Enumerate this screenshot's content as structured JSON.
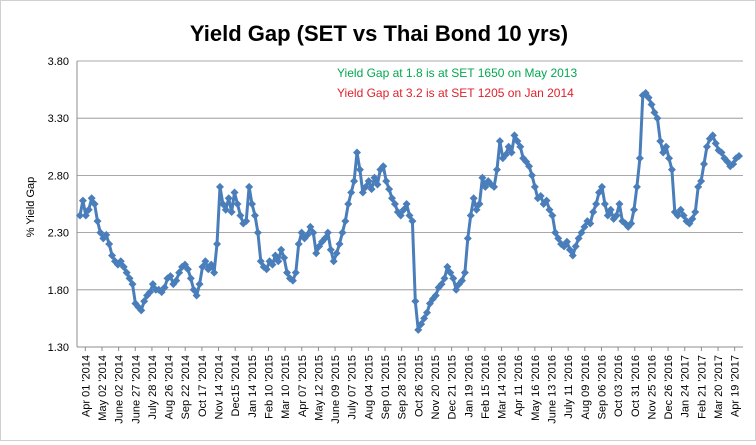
{
  "chart_data": {
    "type": "line",
    "title": "Yield Gap (SET vs Thai Bond 10 yrs)",
    "xlabel": "",
    "ylabel": "% Yield Gap",
    "ylim": [
      1.3,
      3.8
    ],
    "yticks": [
      "1.30",
      "1.80",
      "2.30",
      "2.80",
      "3.30",
      "3.80"
    ],
    "grid": true,
    "legend": "none",
    "line_color": "#4a7ebb",
    "annotations": [
      {
        "text": "Yield Gap at  1.8  is at SET  1650  on May  2013",
        "color": "#00a850"
      },
      {
        "text": "Yield Gap at  3.2  is at SET  1205  on Jan 2014",
        "color": "#e0202a"
      }
    ],
    "x_labels": [
      "Apr 01 '2014",
      "May 02 '2014",
      "June 02 '2014",
      "June 27 '2014",
      "July 28 '2014",
      "Aug 26 '2014",
      "Sep 22 '2014",
      "Oct 17 '2014",
      "Nov 14 '2014",
      "Dec15 '2014",
      "Jan 14 '2015",
      "Feb 10 '2015",
      "Mar 10 '2015",
      "Apr 07 '2015",
      "May 12 '2015",
      "June 09 '2015",
      "July 07 '2015",
      "Aug 04 '2015",
      "Sep 01 '2015",
      "Sep 28 '2015",
      "Oct 26 '2015",
      "Nov 20 '2015",
      "Dec 21 '2015",
      "Jan 19 '2016",
      "Feb 15 '2016",
      "Mar 14 '2016",
      "Apr 11 '2016",
      "May 16 '2016",
      "June 13 '2016",
      "July 11 '2016",
      "Aug 09 '2016",
      "Sep 06 '2016",
      "Oct 03 '2016",
      "Oct 31 '2016",
      "Nov 25 '2016",
      "Dec 26 '2016",
      "Jan 24 '2017",
      "Feb 21 '2017",
      "Mar 20 '2017",
      "Apr 19 '2017"
    ],
    "y_values": [
      2.45,
      2.58,
      2.45,
      2.5,
      2.6,
      2.55,
      2.4,
      2.3,
      2.25,
      2.28,
      2.2,
      2.1,
      2.05,
      2.02,
      2.05,
      2.0,
      1.95,
      1.9,
      1.85,
      1.68,
      1.65,
      1.62,
      1.7,
      1.75,
      1.78,
      1.85,
      1.8,
      1.8,
      1.78,
      1.82,
      1.9,
      1.92,
      1.85,
      1.88,
      1.95,
      2.0,
      2.02,
      1.98,
      1.9,
      1.8,
      1.75,
      1.85,
      2.0,
      2.05,
      1.98,
      2.02,
      1.95,
      2.2,
      2.7,
      2.55,
      2.5,
      2.6,
      2.48,
      2.65,
      2.55,
      2.45,
      2.38,
      2.4,
      2.7,
      2.55,
      2.45,
      2.3,
      2.05,
      2.0,
      1.98,
      2.05,
      2.02,
      2.1,
      2.05,
      2.15,
      2.08,
      1.95,
      1.9,
      1.88,
      1.95,
      2.2,
      2.3,
      2.25,
      2.28,
      2.35,
      2.3,
      2.12,
      2.18,
      2.22,
      2.25,
      2.3,
      2.15,
      2.05,
      2.12,
      2.2,
      2.3,
      2.4,
      2.55,
      2.65,
      2.75,
      3.0,
      2.85,
      2.65,
      2.7,
      2.75,
      2.68,
      2.78,
      2.72,
      2.85,
      2.88,
      2.75,
      2.68,
      2.6,
      2.55,
      2.48,
      2.45,
      2.5,
      2.55,
      2.45,
      2.4,
      1.7,
      1.45,
      1.5,
      1.55,
      1.6,
      1.68,
      1.72,
      1.75,
      1.82,
      1.85,
      1.9,
      2.0,
      1.95,
      1.9,
      1.8,
      1.85,
      1.88,
      1.95,
      2.25,
      2.45,
      2.6,
      2.5,
      2.55,
      2.78,
      2.7,
      2.75,
      2.72,
      2.7,
      2.85,
      3.1,
      2.95,
      2.98,
      3.05,
      3.0,
      3.15,
      3.1,
      3.05,
      2.95,
      2.92,
      2.88,
      2.8,
      2.7,
      2.6,
      2.62,
      2.55,
      2.58,
      2.5,
      2.45,
      2.3,
      2.25,
      2.2,
      2.18,
      2.22,
      2.15,
      2.1,
      2.18,
      2.25,
      2.3,
      2.35,
      2.4,
      2.38,
      2.48,
      2.55,
      2.65,
      2.7,
      2.55,
      2.45,
      2.5,
      2.42,
      2.45,
      2.55,
      2.4,
      2.38,
      2.35,
      2.38,
      2.5,
      2.7,
      2.95,
      3.5,
      3.52,
      3.48,
      3.42,
      3.35,
      3.3,
      3.1,
      3.0,
      3.05,
      2.95,
      2.85,
      2.48,
      2.45,
      2.5,
      2.45,
      2.4,
      2.38,
      2.42,
      2.48,
      2.7,
      2.75,
      2.9,
      3.05,
      3.12,
      3.15,
      3.08,
      3.02,
      3.0,
      2.95,
      2.92,
      2.88,
      2.9,
      2.95,
      2.97
    ]
  }
}
